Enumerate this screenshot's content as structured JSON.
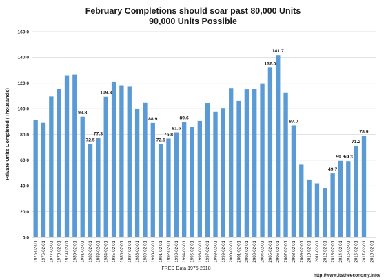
{
  "chart_data": {
    "type": "bar",
    "title": "February Completions should soar past 80,000 Units",
    "subtitle": "90,000 Units Possible",
    "xlabel": "FRED Data 1975-2018",
    "ylabel": "Private Units Completed (Thousands)",
    "ylim": [
      0,
      160
    ],
    "yticks": [
      "0.0",
      "20.0",
      "40.0",
      "60.0",
      "80.0",
      "100.0",
      "120.0",
      "140.0",
      "160.0"
    ],
    "grid": true,
    "bar_color": "#5b9bd5",
    "categories": [
      "1975-02-01",
      "1976-02-01",
      "1977-02-01",
      "1978-02-01",
      "1979-02-01",
      "1980-02-01",
      "1981-02-01",
      "1982-02-01",
      "1983-02-01",
      "1984-02-01",
      "1985-02-01",
      "1986-02-01",
      "1987-02-01",
      "1988-02-01",
      "1989-02-01",
      "1990-02-01",
      "1991-02-01",
      "1992-02-01",
      "1993-02-01",
      "1994-02-01",
      "1995-02-01",
      "1996-02-01",
      "1997-02-01",
      "1998-02-01",
      "1999-02-01",
      "2000-02-01",
      "2001-02-01",
      "2002-02-01",
      "2003-02-01",
      "2004-02-01",
      "2005-02-01",
      "2006-02-01",
      "2007-02-01",
      "2008-02-01",
      "2009-02-01",
      "2010-02-01",
      "2011-02-01",
      "2012-02-01",
      "2013-02-01",
      "2014-02-01",
      "2015-02-01",
      "2016-02-01",
      "2017-02-01",
      "2018-02-01"
    ],
    "values": [
      91.5,
      89.0,
      109.5,
      115.5,
      126.0,
      126.5,
      93.8,
      72.5,
      77.3,
      109.3,
      121.0,
      118.0,
      117.5,
      100.0,
      105.0,
      88.9,
      72.5,
      76.8,
      81.6,
      89.6,
      86.0,
      90.5,
      104.5,
      97.5,
      100.5,
      116.0,
      106.0,
      115.0,
      115.5,
      119.5,
      132.0,
      141.7,
      112.5,
      87.0,
      56.5,
      45.0,
      42.0,
      38.5,
      49.7,
      59.5,
      59.3,
      71.2,
      78.9,
      null
    ],
    "data_labels": {
      "6": "93.8",
      "7": "72.5",
      "8": "77.3",
      "9": "109.3",
      "15": "88.9",
      "16": "72.5",
      "17": "76.8",
      "18": "81.6",
      "19": "89.6",
      "30": "132.0",
      "31": "141.7",
      "33": "87.0",
      "38": "49.7",
      "39": "59.5",
      "40": "59.3",
      "41": "71.2",
      "42": "78.9"
    }
  },
  "footer": {
    "url": "http://www.itstheeconomy.info/"
  }
}
